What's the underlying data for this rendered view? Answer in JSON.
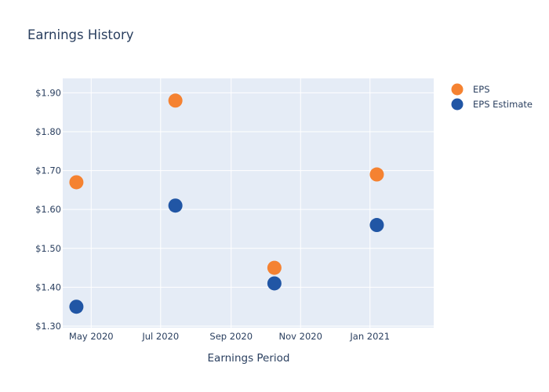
{
  "chart_data": {
    "type": "scatter",
    "title": "Earnings History",
    "xlabel": "Earnings Period",
    "ylabel": "",
    "x_tick_labels": [
      "May 2020",
      "Jul 2020",
      "Sep 2020",
      "Nov 2020",
      "Jan 2021"
    ],
    "x_tick_dates": [
      "2020-05-01",
      "2020-07-01",
      "2020-09-01",
      "2020-11-01",
      "2021-01-01"
    ],
    "xlim": [
      "2020-04-06",
      "2021-02-26"
    ],
    "y_tick_labels": [
      "$1.30",
      "$1.40",
      "$1.50",
      "$1.60",
      "$1.70",
      "$1.80",
      "$1.90"
    ],
    "y_ticks": [
      1.3,
      1.4,
      1.5,
      1.6,
      1.7,
      1.8,
      1.9
    ],
    "ylim": [
      1.296,
      1.937
    ],
    "grid": true,
    "legend_position": "top-right",
    "series": [
      {
        "name": "EPS",
        "color": "#f58231",
        "points": [
          {
            "x": "2020-04-18",
            "y": 1.67
          },
          {
            "x": "2020-07-14",
            "y": 1.88
          },
          {
            "x": "2020-10-09",
            "y": 1.45
          },
          {
            "x": "2021-01-07",
            "y": 1.69
          }
        ]
      },
      {
        "name": "EPS Estimate",
        "color": "#2156a5",
        "points": [
          {
            "x": "2020-04-18",
            "y": 1.35
          },
          {
            "x": "2020-07-14",
            "y": 1.61
          },
          {
            "x": "2020-10-09",
            "y": 1.41
          },
          {
            "x": "2021-01-07",
            "y": 1.56
          }
        ]
      }
    ]
  }
}
